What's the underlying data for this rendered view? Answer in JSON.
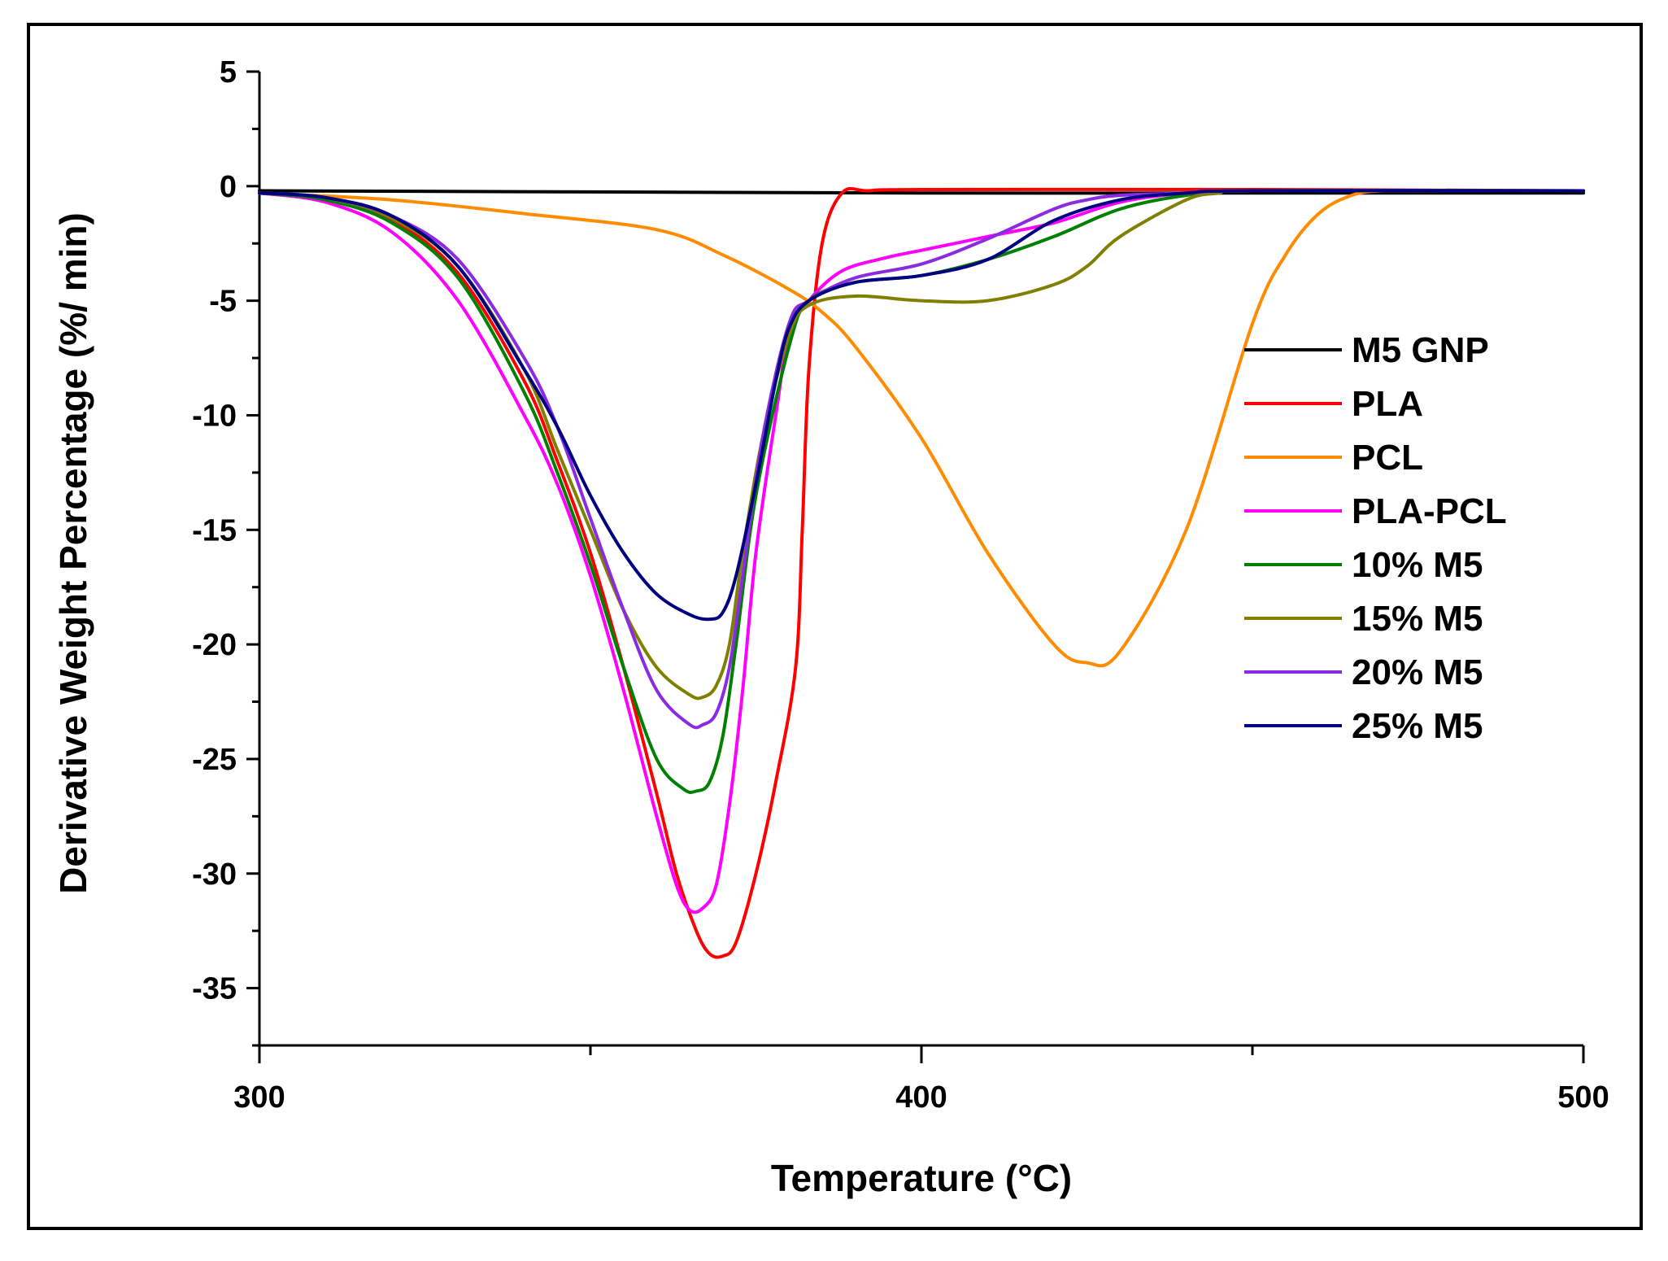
{
  "chart_data": {
    "type": "line",
    "title": "",
    "xlabel": "Temperature (°C)",
    "ylabel": "Derivative Weight Percentage (%/ min)",
    "xlim": [
      300,
      500
    ],
    "ylim": [
      -37.5,
      5
    ],
    "xticks": [
      300,
      400,
      500
    ],
    "xtick_labels": [
      "300",
      "400",
      "500"
    ],
    "yticks": [
      5,
      0,
      -5,
      -10,
      -15,
      -20,
      -25,
      -30,
      -35
    ],
    "ytick_labels": [
      "5",
      "0",
      "-5",
      "-10",
      "-15",
      "-20",
      "-25",
      "-30",
      "-35"
    ],
    "legend_position": "right",
    "series": [
      {
        "name": "M5 GNP",
        "color": "#000000",
        "x": [
          300,
          350,
          400,
          450,
          500
        ],
        "y": [
          -0.2,
          -0.25,
          -0.3,
          -0.3,
          -0.3
        ]
      },
      {
        "name": "PLA",
        "color": "#ff0000",
        "x": [
          300,
          310,
          320,
          330,
          340,
          345,
          350,
          355,
          360,
          363,
          366,
          368,
          370,
          372,
          375,
          378,
          381,
          382,
          383,
          385,
          388,
          392,
          400,
          450,
          500
        ],
        "y": [
          -0.3,
          -0.6,
          -1.5,
          -3.8,
          -8.5,
          -12,
          -16,
          -21,
          -26.5,
          -30,
          -32.5,
          -33.5,
          -33.6,
          -33,
          -30,
          -26,
          -21,
          -15,
          -8,
          -2.5,
          -0.3,
          -0.2,
          -0.15,
          -0.15,
          -0.2
        ]
      },
      {
        "name": "PCL",
        "color": "#ff8c00",
        "x": [
          300,
          320,
          340,
          360,
          370,
          380,
          385,
          390,
          400,
          410,
          420,
          425,
          430,
          440,
          450,
          455,
          460,
          465,
          470,
          480,
          500
        ],
        "y": [
          -0.3,
          -0.6,
          -1.2,
          -1.9,
          -3,
          -4.5,
          -5.5,
          -7,
          -11,
          -16,
          -20,
          -20.8,
          -20.3,
          -15,
          -6,
          -3,
          -1.2,
          -0.4,
          -0.2,
          -0.2,
          -0.2
        ]
      },
      {
        "name": "PLA-PCL",
        "color": "#ff00ff",
        "x": [
          300,
          310,
          320,
          330,
          340,
          345,
          350,
          355,
          360,
          363,
          365,
          367,
          369,
          371,
          373,
          375,
          378,
          380,
          383,
          388,
          395,
          400,
          410,
          420,
          430,
          440,
          450,
          500
        ],
        "y": [
          -0.3,
          -0.7,
          -2,
          -5,
          -10,
          -13,
          -17,
          -22,
          -27.5,
          -30.5,
          -31.6,
          -31.5,
          -30.5,
          -27,
          -22,
          -16,
          -10,
          -6.5,
          -5,
          -3.7,
          -3.1,
          -2.8,
          -2.2,
          -1.6,
          -0.7,
          -0.3,
          -0.2,
          -0.2
        ]
      },
      {
        "name": "10% M5",
        "color": "#008000",
        "x": [
          300,
          310,
          320,
          330,
          340,
          345,
          350,
          355,
          360,
          364,
          366,
          368,
          370,
          372,
          375,
          380,
          383,
          390,
          400,
          410,
          420,
          430,
          440,
          450,
          500
        ],
        "y": [
          -0.3,
          -0.6,
          -1.6,
          -4,
          -9,
          -12.5,
          -16.5,
          -21,
          -25,
          -26.3,
          -26.4,
          -26,
          -24,
          -20,
          -13.5,
          -7,
          -5,
          -4.2,
          -3.9,
          -3.2,
          -2.2,
          -1,
          -0.4,
          -0.2,
          -0.2
        ]
      },
      {
        "name": "15% M5",
        "color": "#808000",
        "x": [
          300,
          310,
          320,
          330,
          340,
          345,
          350,
          355,
          360,
          365,
          367,
          369,
          371,
          373,
          376,
          380,
          383,
          390,
          400,
          410,
          420,
          425,
          430,
          440,
          445,
          450,
          500
        ],
        "y": [
          -0.3,
          -0.5,
          -1.4,
          -3.5,
          -8,
          -11.5,
          -15,
          -18.5,
          -21,
          -22.2,
          -22.3,
          -21.8,
          -20,
          -16,
          -11,
          -6.5,
          -5.2,
          -4.8,
          -5,
          -5,
          -4.3,
          -3.5,
          -2.2,
          -0.6,
          -0.3,
          -0.2,
          -0.2
        ]
      },
      {
        "name": "20% M5",
        "color": "#8a2be2",
        "x": [
          300,
          310,
          320,
          330,
          340,
          345,
          350,
          355,
          360,
          365,
          367,
          369,
          371,
          373,
          376,
          380,
          383,
          390,
          400,
          410,
          420,
          425,
          430,
          440,
          450,
          500
        ],
        "y": [
          -0.3,
          -0.5,
          -1.3,
          -3.2,
          -7.5,
          -10.5,
          -14.5,
          -18.5,
          -22,
          -23.5,
          -23.5,
          -23,
          -21,
          -17,
          -11,
          -6,
          -5,
          -4,
          -3.4,
          -2.3,
          -1,
          -0.6,
          -0.4,
          -0.3,
          -0.2,
          -0.2
        ]
      },
      {
        "name": "25% M5",
        "color": "#000080",
        "x": [
          300,
          310,
          320,
          330,
          340,
          345,
          350,
          355,
          360,
          365,
          368,
          370,
          372,
          375,
          378,
          380,
          383,
          390,
          400,
          410,
          420,
          430,
          440,
          450,
          500
        ],
        "y": [
          -0.3,
          -0.5,
          -1.3,
          -3.5,
          -8,
          -10.5,
          -13.5,
          -16,
          -17.8,
          -18.7,
          -18.9,
          -18.6,
          -17,
          -13,
          -8.5,
          -6.2,
          -5,
          -4.2,
          -3.9,
          -3.2,
          -1.5,
          -0.6,
          -0.3,
          -0.2,
          -0.2
        ]
      }
    ]
  }
}
